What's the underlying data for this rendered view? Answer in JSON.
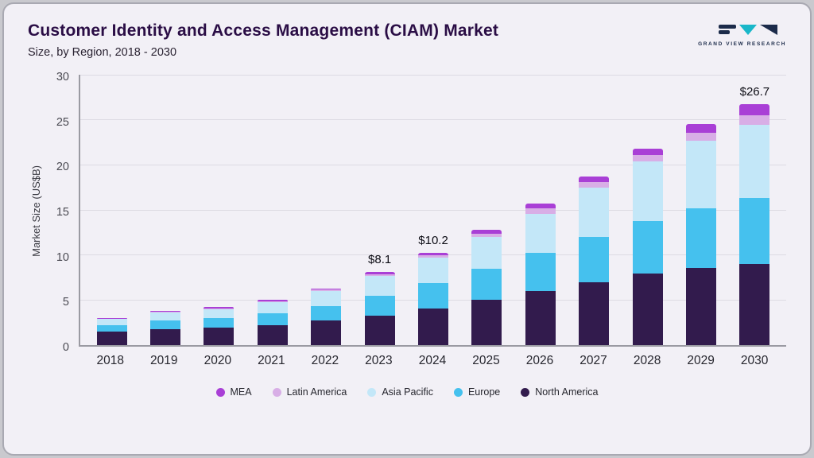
{
  "header": {
    "title": "Customer Identity and Access Management (CIAM) Market",
    "subtitle": "Size, by Region, 2018 - 2030",
    "logo_text": "GRAND VIEW RESEARCH"
  },
  "chart_data": {
    "type": "bar",
    "stacked": true,
    "title": "Customer Identity and Access Management (CIAM) Market Size, by Region, 2018 - 2030",
    "ylabel": "Market Size (US$B)",
    "ylim": [
      0,
      30
    ],
    "yticks": [
      0,
      5,
      10,
      15,
      20,
      25,
      30
    ],
    "grid": true,
    "legend_position": "bottom",
    "categories": [
      "2018",
      "2019",
      "2020",
      "2021",
      "2022",
      "2023",
      "2024",
      "2025",
      "2026",
      "2027",
      "2028",
      "2029",
      "2030"
    ],
    "series": [
      {
        "name": "North America",
        "color": "#321b4d",
        "values": [
          1.5,
          1.8,
          1.9,
          2.2,
          2.7,
          3.3,
          4.1,
          5.0,
          6.0,
          7.0,
          7.9,
          8.6,
          9.0
        ]
      },
      {
        "name": "Europe",
        "color": "#45c1ee",
        "values": [
          0.7,
          0.9,
          1.1,
          1.3,
          1.6,
          2.2,
          2.8,
          3.5,
          4.2,
          5.0,
          5.9,
          6.6,
          7.3
        ]
      },
      {
        "name": "Asia Pacific",
        "color": "#c3e7f8",
        "values": [
          0.7,
          0.9,
          1.0,
          1.3,
          1.7,
          2.2,
          2.8,
          3.5,
          4.4,
          5.5,
          6.6,
          7.5,
          8.1
        ]
      },
      {
        "name": "Latin America",
        "color": "#d8aee6",
        "values": [
          0.05,
          0.1,
          0.1,
          0.1,
          0.15,
          0.2,
          0.25,
          0.4,
          0.55,
          0.6,
          0.7,
          0.9,
          1.1
        ]
      },
      {
        "name": "MEA",
        "color": "#a93fd6",
        "values": [
          0.05,
          0.1,
          0.1,
          0.1,
          0.15,
          0.2,
          0.25,
          0.4,
          0.55,
          0.6,
          0.7,
          0.9,
          1.2
        ]
      }
    ],
    "totals": [
      3.0,
      3.8,
      4.2,
      5.0,
      6.3,
      8.1,
      10.2,
      12.8,
      15.7,
      18.7,
      21.8,
      24.5,
      26.7
    ],
    "annotations": [
      {
        "category": "2023",
        "label": "$8.1"
      },
      {
        "category": "2024",
        "label": "$10.2"
      },
      {
        "category": "2030",
        "label": "$26.7"
      }
    ],
    "legend": [
      "MEA",
      "Latin America",
      "Asia Pacific",
      "Europe",
      "North America"
    ]
  }
}
